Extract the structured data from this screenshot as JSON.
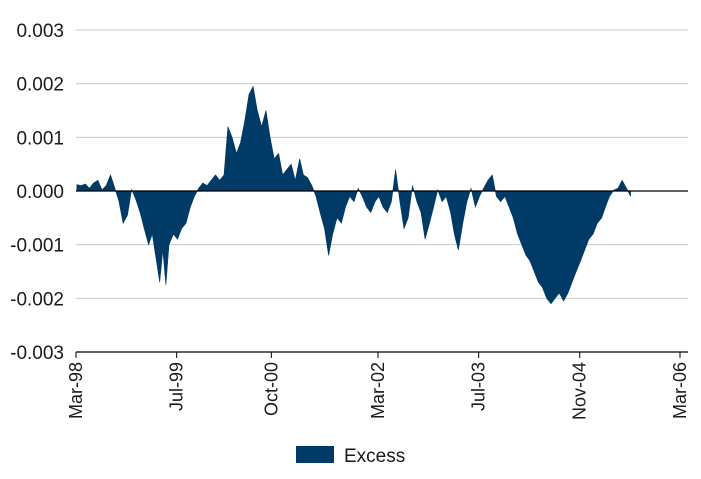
{
  "chart_data": {
    "type": "area",
    "title": "",
    "xlabel": "",
    "ylabel": "",
    "ylim": [
      -0.003,
      0.003
    ],
    "yticks": [
      "0.003",
      "0.002",
      "0.001",
      "0.000",
      "-0.001",
      "-0.002",
      "-0.003"
    ],
    "ytick_values": [
      0.003,
      0.002,
      0.001,
      0.0,
      -0.001,
      -0.002,
      -0.003
    ],
    "x_range": [
      "1998-03",
      "2006-03"
    ],
    "xticks": [
      "Mar-98",
      "Jul-99",
      "Oct-00",
      "Mar-02",
      "Jul-03",
      "Nov-04",
      "Mar-06"
    ],
    "xtick_dates": [
      "1998-03",
      "1999-07",
      "2000-10",
      "2002-03",
      "2003-07",
      "2004-11",
      "2006-03"
    ],
    "grid": true,
    "legend_position": "bottom-center",
    "series": [
      {
        "name": "Excess",
        "color": "#003a66",
        "points": [
          [
            "1998-03-05",
            0.00012
          ],
          [
            "1998-03-25",
            0.0001
          ],
          [
            "1998-04-15",
            0.00013
          ],
          [
            "1998-05-05",
            5e-05
          ],
          [
            "1998-05-25",
            0.00015
          ],
          [
            "1998-06-15",
            0.0002
          ],
          [
            "1998-07-05",
            2e-05
          ],
          [
            "1998-07-25",
            0.0001
          ],
          [
            "1998-08-15",
            0.0003
          ],
          [
            "1998-09-05",
            5e-05
          ],
          [
            "1998-09-25",
            -0.0002
          ],
          [
            "1998-10-15",
            -0.0006
          ],
          [
            "1998-11-05",
            -0.00045
          ],
          [
            "1998-11-25",
            3e-05
          ],
          [
            "1998-12-15",
            -0.00015
          ],
          [
            "1999-01-05",
            -0.0004
          ],
          [
            "1999-01-25",
            -0.0007
          ],
          [
            "1999-02-15",
            -0.001
          ],
          [
            "1999-03-05",
            -0.0008
          ],
          [
            "1999-03-25",
            -0.0013
          ],
          [
            "1999-04-10",
            -0.0017
          ],
          [
            "1999-04-25",
            -0.0011
          ],
          [
            "1999-05-10",
            -0.00175
          ],
          [
            "1999-05-25",
            -0.001
          ],
          [
            "1999-06-15",
            -0.0008
          ],
          [
            "1999-07-05",
            -0.0009
          ],
          [
            "1999-07-25",
            -0.0007
          ],
          [
            "1999-08-15",
            -0.0006
          ],
          [
            "1999-09-05",
            -0.0003
          ],
          [
            "1999-09-25",
            -0.0001
          ],
          [
            "1999-10-15",
            5e-05
          ],
          [
            "1999-11-05",
            0.00015
          ],
          [
            "1999-11-25",
            0.0001
          ],
          [
            "1999-12-15",
            0.0002
          ],
          [
            "2000-01-05",
            0.0003
          ],
          [
            "2000-01-25",
            0.0002
          ],
          [
            "2000-02-15",
            0.0003
          ],
          [
            "2000-03-05",
            0.0012
          ],
          [
            "2000-03-25",
            0.001
          ],
          [
            "2000-04-15",
            0.0007
          ],
          [
            "2000-05-05",
            0.0009
          ],
          [
            "2000-05-25",
            0.0013
          ],
          [
            "2000-06-15",
            0.0018
          ],
          [
            "2000-07-05",
            0.00195
          ],
          [
            "2000-07-25",
            0.0015
          ],
          [
            "2000-08-15",
            0.0012
          ],
          [
            "2000-09-05",
            0.0015
          ],
          [
            "2000-09-25",
            0.001
          ],
          [
            "2000-10-15",
            0.0006
          ],
          [
            "2000-11-05",
            0.0007
          ],
          [
            "2000-11-25",
            0.0003
          ],
          [
            "2000-12-15",
            0.0004
          ],
          [
            "2001-01-05",
            0.0005
          ],
          [
            "2001-01-25",
            0.0002
          ],
          [
            "2001-02-15",
            0.0006
          ],
          [
            "2001-03-05",
            0.0003
          ],
          [
            "2001-03-25",
            0.00025
          ],
          [
            "2001-04-15",
            0.0001
          ],
          [
            "2001-05-05",
            -0.0001
          ],
          [
            "2001-05-25",
            -0.0004
          ],
          [
            "2001-06-15",
            -0.0007
          ],
          [
            "2001-07-05",
            -0.0012
          ],
          [
            "2001-07-25",
            -0.0008
          ],
          [
            "2001-08-15",
            -0.0005
          ],
          [
            "2001-09-05",
            -0.0006
          ],
          [
            "2001-09-25",
            -0.0003
          ],
          [
            "2001-10-15",
            -0.0001
          ],
          [
            "2001-11-05",
            -0.0002
          ],
          [
            "2001-11-25",
            5e-05
          ],
          [
            "2001-12-15",
            -0.0001
          ],
          [
            "2002-01-05",
            -0.0003
          ],
          [
            "2002-01-25",
            -0.0004
          ],
          [
            "2002-02-15",
            -0.0002
          ],
          [
            "2002-03-05",
            -0.0001
          ],
          [
            "2002-03-25",
            -0.0003
          ],
          [
            "2002-04-15",
            -0.0004
          ],
          [
            "2002-05-05",
            -0.0002
          ],
          [
            "2002-05-25",
            0.0004
          ],
          [
            "2002-06-15",
            -0.0002
          ],
          [
            "2002-07-05",
            -0.0007
          ],
          [
            "2002-07-25",
            -0.0005
          ],
          [
            "2002-08-15",
            0.0001
          ],
          [
            "2002-09-05",
            -0.0002
          ],
          [
            "2002-09-25",
            -0.0004
          ],
          [
            "2002-10-15",
            -0.0009
          ],
          [
            "2002-11-05",
            -0.0006
          ],
          [
            "2002-11-25",
            -0.0003
          ],
          [
            "2002-12-15",
            2e-05
          ],
          [
            "2003-01-05",
            -0.0002
          ],
          [
            "2003-01-25",
            -0.0001
          ],
          [
            "2003-02-15",
            -0.0004
          ],
          [
            "2003-03-05",
            -0.0008
          ],
          [
            "2003-03-25",
            -0.0011
          ],
          [
            "2003-04-15",
            -0.0006
          ],
          [
            "2003-05-05",
            -0.0002
          ],
          [
            "2003-05-25",
            5e-05
          ],
          [
            "2003-06-15",
            -0.0003
          ],
          [
            "2003-07-05",
            -0.0001
          ],
          [
            "2003-07-25",
            5e-05
          ],
          [
            "2003-08-15",
            0.0002
          ],
          [
            "2003-09-05",
            0.0003
          ],
          [
            "2003-09-25",
            -0.0001
          ],
          [
            "2003-10-15",
            -0.0002
          ],
          [
            "2003-11-05",
            -0.0001
          ],
          [
            "2003-11-25",
            -0.0003
          ],
          [
            "2003-12-15",
            -0.0005
          ],
          [
            "2004-01-05",
            -0.0008
          ],
          [
            "2004-01-25",
            -0.001
          ],
          [
            "2004-02-15",
            -0.0012
          ],
          [
            "2004-03-05",
            -0.0013
          ],
          [
            "2004-03-25",
            -0.0015
          ],
          [
            "2004-04-15",
            -0.0017
          ],
          [
            "2004-05-05",
            -0.0018
          ],
          [
            "2004-05-25",
            -0.002
          ],
          [
            "2004-06-15",
            -0.0021
          ],
          [
            "2004-07-05",
            -0.002
          ],
          [
            "2004-07-25",
            -0.0019
          ],
          [
            "2004-08-15",
            -0.00205
          ],
          [
            "2004-09-05",
            -0.0019
          ],
          [
            "2004-09-25",
            -0.0017
          ],
          [
            "2004-10-15",
            -0.0015
          ],
          [
            "2004-11-05",
            -0.0013
          ],
          [
            "2004-11-25",
            -0.0011
          ],
          [
            "2004-12-15",
            -0.0009
          ],
          [
            "2005-01-05",
            -0.0008
          ],
          [
            "2005-01-25",
            -0.0006
          ],
          [
            "2005-02-15",
            -0.0005
          ],
          [
            "2005-03-05",
            -0.0003
          ],
          [
            "2005-03-25",
            -0.0001
          ],
          [
            "2005-04-15",
            2e-05
          ],
          [
            "2005-05-05",
            5e-05
          ],
          [
            "2005-05-25",
            0.0002
          ],
          [
            "2005-06-15",
            5e-05
          ],
          [
            "2005-07-05",
            -0.0001
          ]
        ]
      }
    ]
  },
  "legend": {
    "label": "Excess",
    "swatch_color": "#003a66"
  }
}
